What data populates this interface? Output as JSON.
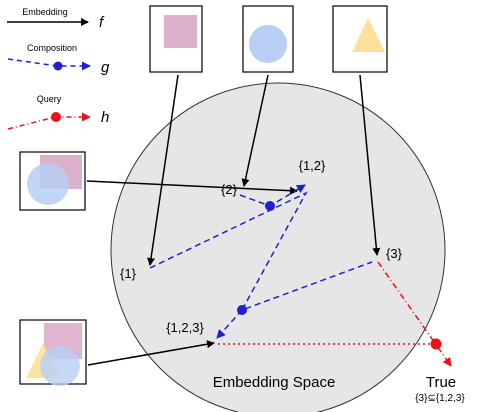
{
  "legend": {
    "embedding_label": "Embedding",
    "embedding_symbol": "f",
    "composition_label": "Composition",
    "composition_symbol": "g",
    "query_label": "Query",
    "query_symbol": "h"
  },
  "space": {
    "title": "Embedding Space",
    "fill_color": "#e6e6e6"
  },
  "points": {
    "set_1": "{1}",
    "set_2": "{2}",
    "set_3": "{3}",
    "set_12": "{1,2}",
    "set_123": "{1,2,3}"
  },
  "result": {
    "value": "True",
    "expression": "{3}⊆{1,2,3}"
  },
  "colors": {
    "embedding": "#000000",
    "composition": "#1f1fd6",
    "query": "#e8141c",
    "square_fill": "#d9a9c4",
    "circle_fill": "#b7cff5",
    "triangle_fill": "#fde19a"
  },
  "shape_icons": [
    "square-icon",
    "circle-icon",
    "triangle-icon"
  ]
}
